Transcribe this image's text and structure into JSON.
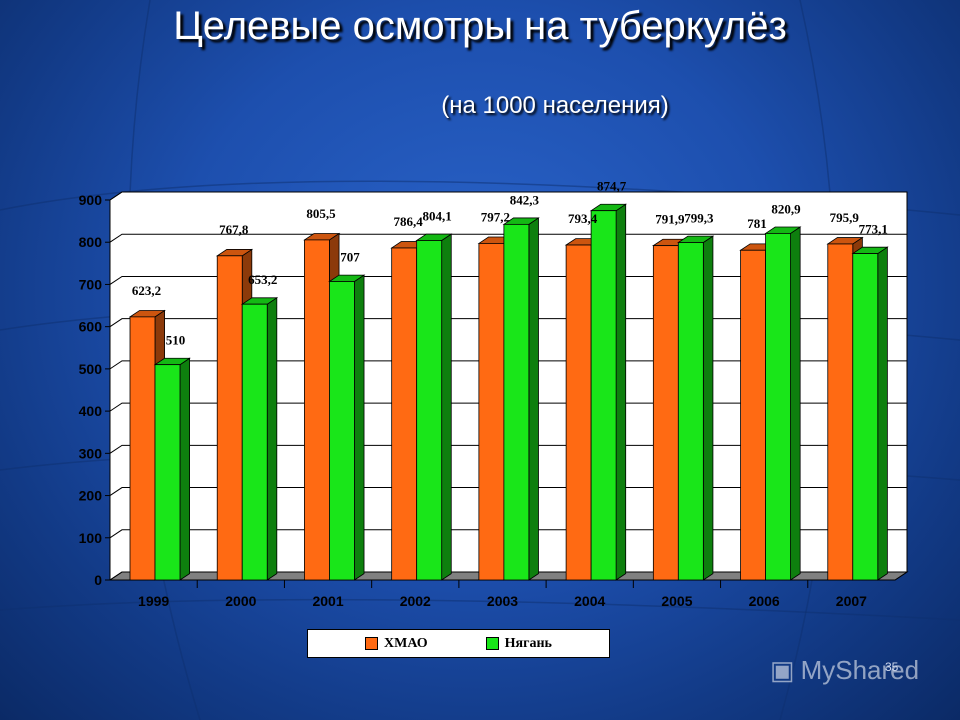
{
  "title": "Целевые осмотры на туберкулёз",
  "subtitle": "(на 1000 населения)",
  "page_number": "35",
  "watermark": "MyShared",
  "colors": {
    "series1": "#ff6a13",
    "series2": "#19e619",
    "plot_bg": "#ffffff",
    "background": "#1d4fae"
  },
  "chart_data": {
    "type": "bar",
    "categories": [
      "1999",
      "2000",
      "2001",
      "2002",
      "2003",
      "2004",
      "2005",
      "2006",
      "2007"
    ],
    "series": [
      {
        "name": "ХМАО",
        "values": [
          623.2,
          767.8,
          805.5,
          786.4,
          797.2,
          793.4,
          791.9,
          781,
          795.9
        ],
        "labels": [
          "623,2",
          "767,8",
          "805,5",
          "786,4",
          "797,2",
          "793,4",
          "791,9",
          "781",
          "795,9"
        ]
      },
      {
        "name": "Нягань",
        "values": [
          510,
          653.2,
          707,
          804.1,
          842.3,
          874.7,
          799.3,
          820.9,
          773.1
        ],
        "labels": [
          "510",
          "653,2",
          "707",
          "804,1",
          "842,3",
          "874,7",
          "799,3",
          "820,9",
          "773,1"
        ]
      }
    ],
    "ylim": [
      0,
      900
    ],
    "yticks": [
      0,
      100,
      200,
      300,
      400,
      500,
      600,
      700,
      800,
      900
    ],
    "ytick_labels": [
      "0",
      "100",
      "200",
      "300",
      "400",
      "500",
      "600",
      "700",
      "800",
      "900"
    ],
    "grid": true,
    "legend_position": "bottom"
  }
}
